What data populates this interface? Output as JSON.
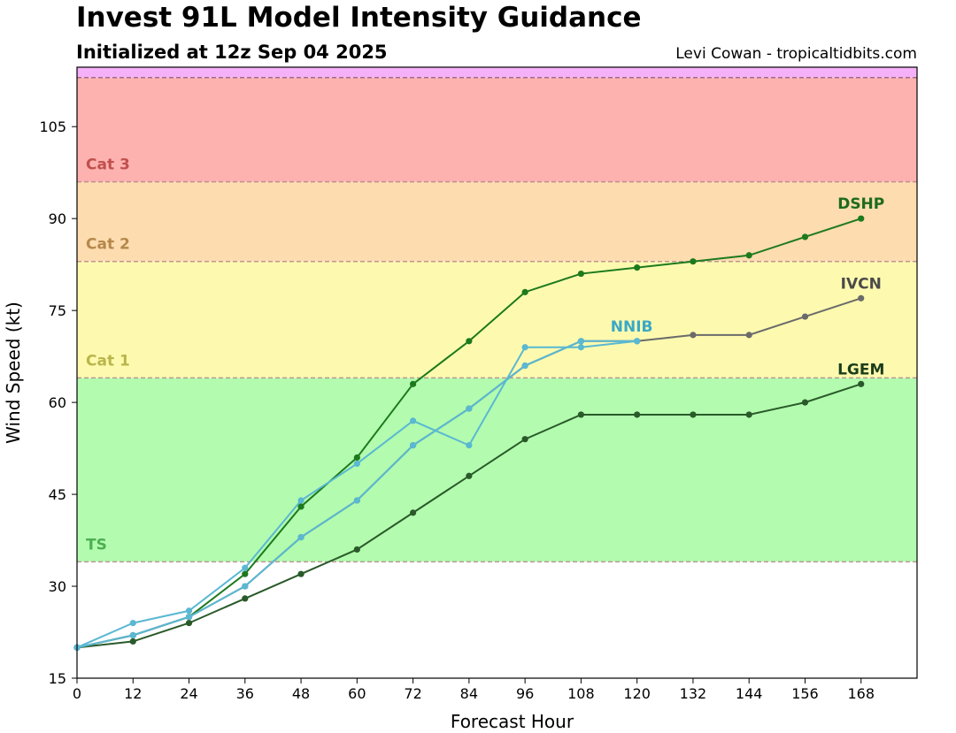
{
  "header": {
    "title": "Invest 91L Model Intensity Guidance",
    "subtitle": "Initialized at 12z Sep 04 2025",
    "credit": "Levi Cowan - tropicaltidbits.com"
  },
  "chart_data": {
    "type": "line",
    "title": "Invest 91L Model Intensity Guidance",
    "subtitle": "Initialized at 12z Sep 04 2025",
    "xlabel": "Forecast Hour",
    "ylabel": "Wind Speed (kt)",
    "xlim": [
      0,
      180
    ],
    "ylim": [
      15,
      113
    ],
    "xticks": [
      0,
      12,
      24,
      36,
      48,
      60,
      72,
      84,
      96,
      108,
      120,
      132,
      144,
      156,
      168
    ],
    "yticks": [
      15,
      30,
      45,
      60,
      75,
      90,
      105
    ],
    "grid": false,
    "legend": "none",
    "bands": [
      {
        "label": "TS",
        "from": 34,
        "to": 64,
        "color": "#b3fcaf",
        "label_color": "#4caf50"
      },
      {
        "label": "Cat 1",
        "from": 64,
        "to": 83,
        "color": "#fdfaaf",
        "label_color": "#b9b54a"
      },
      {
        "label": "Cat 2",
        "from": 83,
        "to": 96,
        "color": "#fddcb0",
        "label_color": "#b5884a"
      },
      {
        "label": "Cat 3",
        "from": 96,
        "to": 113,
        "color": "#fdb2b0",
        "label_color": "#c0504d"
      },
      {
        "label": "",
        "from": 113,
        "to": 115,
        "color": "#f5b1f8",
        "label_color": "#000000"
      }
    ],
    "series": [
      {
        "name": "DSHP",
        "color": "#1d7a1d",
        "label_color": "#1d6b1d",
        "x": [
          0,
          12,
          24,
          36,
          48,
          60,
          72,
          84,
          96,
          108,
          120,
          132,
          144,
          156,
          168
        ],
        "values": [
          20,
          22,
          25,
          32,
          43,
          51,
          63,
          70,
          78,
          81,
          82,
          83,
          84,
          87,
          90
        ]
      },
      {
        "name": "IVCN",
        "color": "#6b6b6b",
        "label_color": "#4a4a4a",
        "x": [
          0,
          12,
          24,
          36,
          48,
          60,
          72,
          84,
          96,
          108,
          120,
          132,
          144,
          156,
          168
        ],
        "values": [
          20,
          22,
          25,
          30,
          38,
          44,
          53,
          59,
          66,
          70,
          70,
          71,
          71,
          74,
          77
        ]
      },
      {
        "name": "LGEM",
        "color": "#2a5a2a",
        "label_color": "#1a3d1a",
        "x": [
          0,
          12,
          24,
          36,
          48,
          60,
          72,
          84,
          96,
          108,
          120,
          132,
          144,
          156,
          168
        ],
        "values": [
          20,
          21,
          24,
          28,
          32,
          36,
          42,
          48,
          54,
          58,
          58,
          58,
          58,
          60,
          63
        ]
      },
      {
        "name": "NNIB",
        "color": "#5ab8d2",
        "label_color": "#3aa8c8",
        "x": [
          0,
          12,
          24,
          36,
          48,
          60,
          72,
          84,
          96,
          108,
          120
        ],
        "values": [
          20,
          24,
          26,
          33,
          44,
          50,
          57,
          53,
          69,
          69,
          70
        ]
      },
      {
        "name": "",
        "color": "#5ab8d2",
        "label_color": "#3aa8c8",
        "x": [
          0,
          12,
          24,
          36,
          48,
          60,
          72,
          84,
          96,
          108,
          120
        ],
        "values": [
          20,
          22,
          25,
          30,
          38,
          44,
          53,
          59,
          66,
          70,
          70
        ]
      }
    ]
  }
}
